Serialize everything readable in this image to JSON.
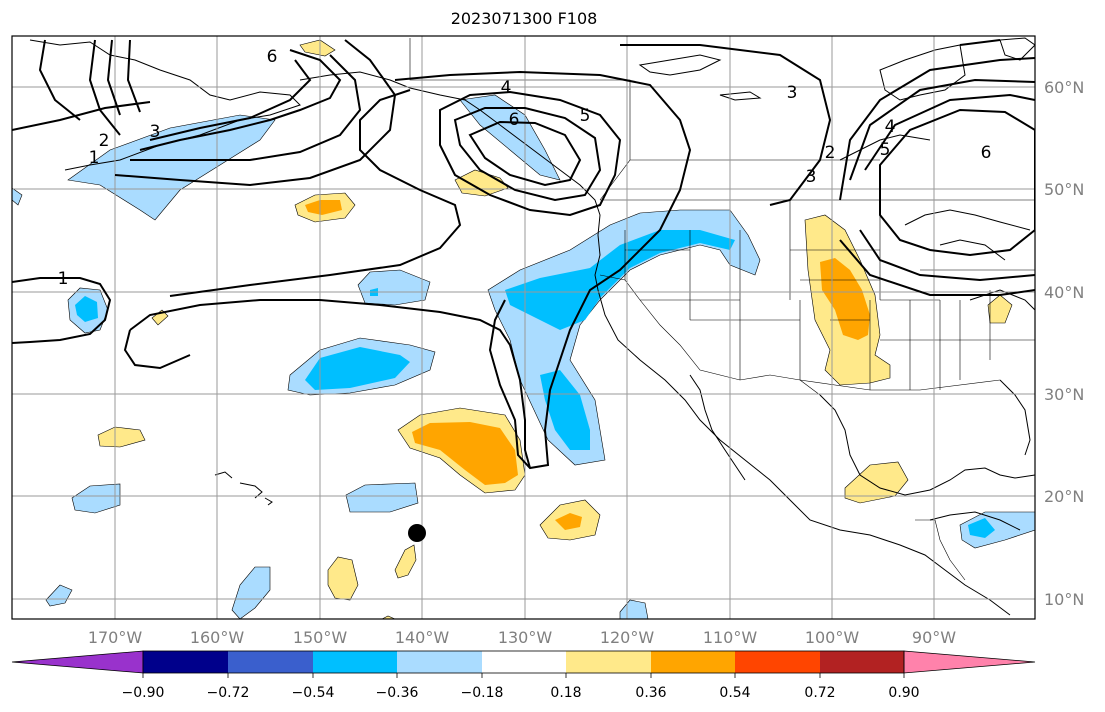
{
  "title": "2023071300 F108",
  "map": {
    "lon_ticks": [
      "170°W",
      "160°W",
      "150°W",
      "140°W",
      "130°W",
      "120°W",
      "110°W",
      "100°W",
      "90°W"
    ],
    "lat_ticks": [
      "60°N",
      "50°N",
      "40°N",
      "30°N",
      "20°N",
      "10°N"
    ],
    "contour_labels": [
      "6",
      "4",
      "5",
      "6",
      "3",
      "4",
      "5",
      "6",
      "3",
      "2",
      "2",
      "3",
      "1",
      "1"
    ],
    "colors": {
      "light_blue": "#aadcff",
      "blue": "#00bfff",
      "yellow": "#ffe98a",
      "orange": "#ffa500"
    }
  },
  "colorbar": {
    "ticks": [
      "−0.90",
      "−0.72",
      "−0.54",
      "−0.36",
      "−0.18",
      "0.18",
      "0.36",
      "0.54",
      "0.72",
      "0.90"
    ],
    "colors": [
      "#9932cc",
      "#00008b",
      "#3a5fcd",
      "#00bfff",
      "#aadcff",
      "#ffffff",
      "#ffe98a",
      "#ffa500",
      "#ff4500",
      "#b22222",
      "#ff82ab"
    ]
  }
}
